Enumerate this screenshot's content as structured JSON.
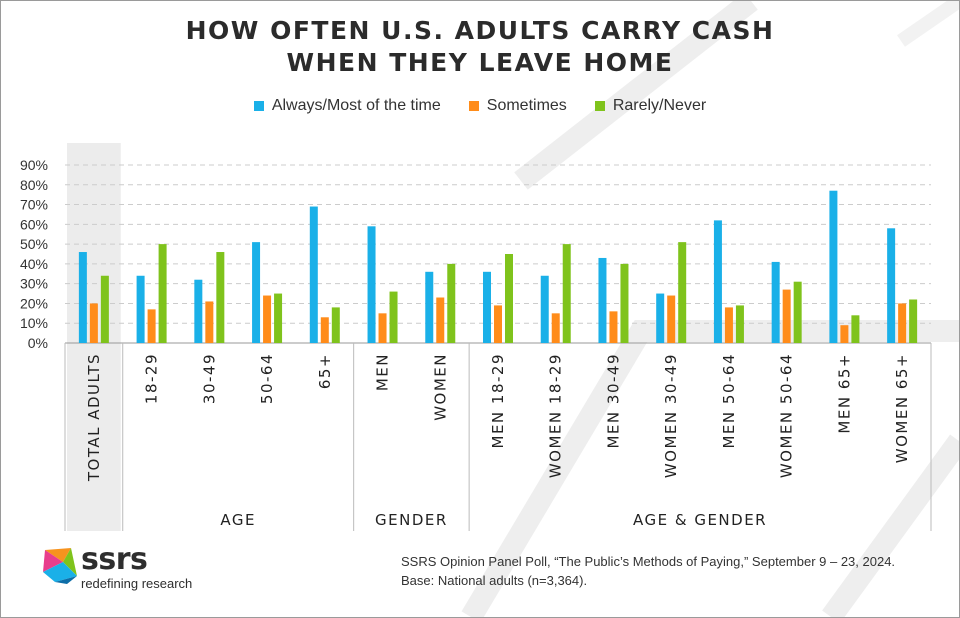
{
  "title_lines": [
    "HOW OFTEN U.S. ADULTS CARRY CASH",
    "WHEN THEY LEAVE HOME"
  ],
  "chart_data": {
    "type": "bar",
    "title": "HOW OFTEN U.S. ADULTS CARRY CASH WHEN THEY LEAVE HOME",
    "categories": [
      "TOTAL ADULTS",
      "18-29",
      "30-49",
      "50-64",
      "65+",
      "MEN",
      "WOMEN",
      "MEN 18-29",
      "WOMEN 18-29",
      "MEN 30-49",
      "WOMEN 30-49",
      "MEN 50-64",
      "WOMEN 50-64",
      "MEN 65+",
      "WOMEN 65+"
    ],
    "groups": [
      {
        "label": "",
        "categories": [
          "TOTAL ADULTS"
        ]
      },
      {
        "label": "AGE",
        "categories": [
          "18-29",
          "30-49",
          "50-64",
          "65+"
        ]
      },
      {
        "label": "GENDER",
        "categories": [
          "MEN",
          "WOMEN"
        ]
      },
      {
        "label": "AGE & GENDER",
        "categories": [
          "MEN 18-29",
          "WOMEN 18-29",
          "MEN 30-49",
          "WOMEN 30-49",
          "MEN 50-64",
          "WOMEN 50-64",
          "MEN 65+",
          "WOMEN 65+"
        ]
      }
    ],
    "series": [
      {
        "name": "Always/Most of the time",
        "color": "#1ab0e8",
        "values": [
          46,
          34,
          32,
          51,
          69,
          59,
          36,
          36,
          34,
          43,
          25,
          62,
          41,
          77,
          58
        ]
      },
      {
        "name": "Sometimes",
        "color": "#ff8c1a",
        "values": [
          20,
          17,
          21,
          24,
          13,
          15,
          23,
          19,
          15,
          16,
          24,
          18,
          27,
          9,
          20
        ]
      },
      {
        "name": "Rarely/Never",
        "color": "#7fc31c",
        "values": [
          34,
          50,
          46,
          25,
          18,
          26,
          40,
          45,
          50,
          40,
          51,
          19,
          31,
          14,
          22
        ]
      }
    ],
    "ylim": [
      0,
      90
    ],
    "yticks": [
      "0%",
      "10%",
      "20%",
      "30%",
      "40%",
      "50%",
      "60%",
      "70%",
      "80%",
      "90%"
    ],
    "grid": true,
    "legend": "top-center",
    "highlight_category": "TOTAL ADULTS",
    "highlight_color": "#ececec"
  },
  "footer": {
    "line1": "SSRS Opinion Panel Poll, “The Public’s Methods of Paying,” September 9 – 23, 2024.",
    "line2": "Base: National adults (n=3,364)."
  },
  "logo": {
    "word": "ssrs",
    "tagline": "redefining research"
  }
}
